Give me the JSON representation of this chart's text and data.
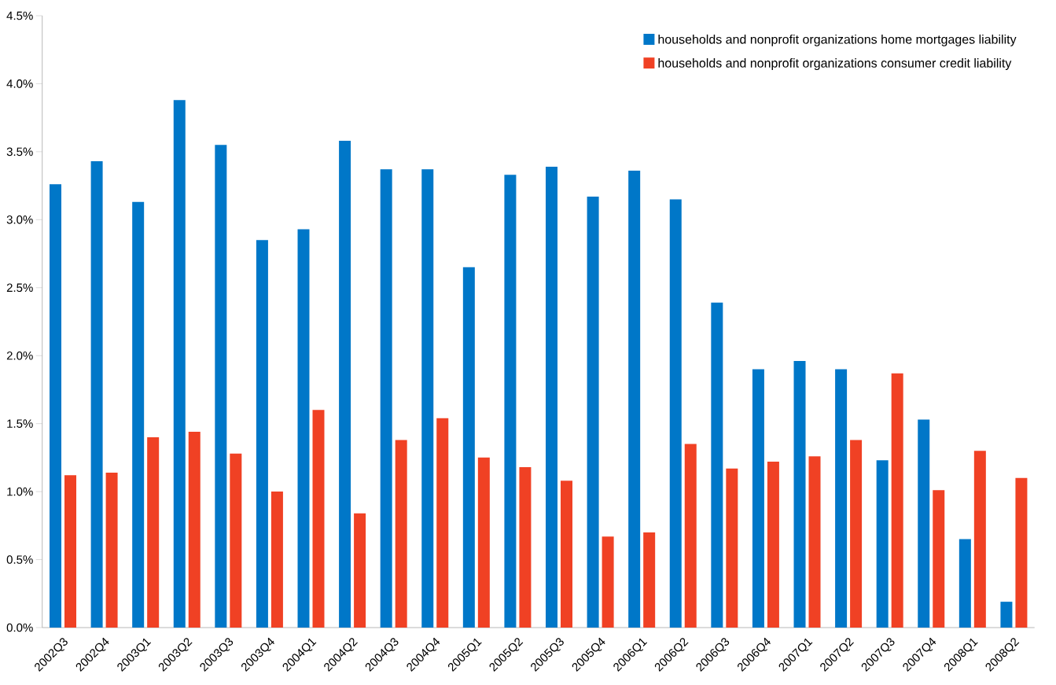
{
  "chart_data": {
    "type": "bar",
    "categories": [
      "2002Q3",
      "2002Q4",
      "2003Q1",
      "2003Q2",
      "2003Q3",
      "2003Q4",
      "2004Q1",
      "2004Q2",
      "2004Q3",
      "2004Q4",
      "2005Q1",
      "2005Q2",
      "2005Q3",
      "2005Q4",
      "2006Q1",
      "2006Q2",
      "2006Q3",
      "2006Q4",
      "2007Q1",
      "2007Q2",
      "2007Q3",
      "2007Q4",
      "2008Q1",
      "2008Q2"
    ],
    "series": [
      {
        "name": "households and nonprofit organizations home mortgages liability",
        "color": "#0077c8",
        "values": [
          3.26,
          3.43,
          3.13,
          3.88,
          3.55,
          2.85,
          2.93,
          3.58,
          3.37,
          3.37,
          2.65,
          3.33,
          3.39,
          3.17,
          3.36,
          3.15,
          2.39,
          1.9,
          1.96,
          1.9,
          1.23,
          1.53,
          0.65,
          0.19
        ]
      },
      {
        "name": "households and nonprofit organizations consumer credit liability",
        "color": "#f04124",
        "values": [
          1.12,
          1.14,
          1.4,
          1.44,
          1.28,
          1.0,
          1.6,
          0.84,
          1.38,
          1.54,
          1.25,
          1.18,
          1.08,
          0.67,
          0.7,
          1.35,
          1.17,
          1.22,
          1.26,
          1.38,
          1.87,
          1.01,
          1.3,
          1.1
        ]
      }
    ],
    "ylim": [
      0,
      4.5
    ],
    "yticks": [
      {
        "value": 0,
        "label": "0.0%"
      },
      {
        "value": 0.5,
        "label": "0.5%"
      },
      {
        "value": 1,
        "label": "1.0%"
      },
      {
        "value": 1.5,
        "label": "1.5%"
      },
      {
        "value": 2,
        "label": "2.0%"
      },
      {
        "value": 2.5,
        "label": "2.5%"
      },
      {
        "value": 3,
        "label": "3.0%"
      },
      {
        "value": 3.5,
        "label": "3.5%"
      },
      {
        "value": 4,
        "label": "4.0%"
      },
      {
        "value": 4.5,
        "label": "4.5%"
      }
    ],
    "legend": "top right",
    "grid": false
  }
}
